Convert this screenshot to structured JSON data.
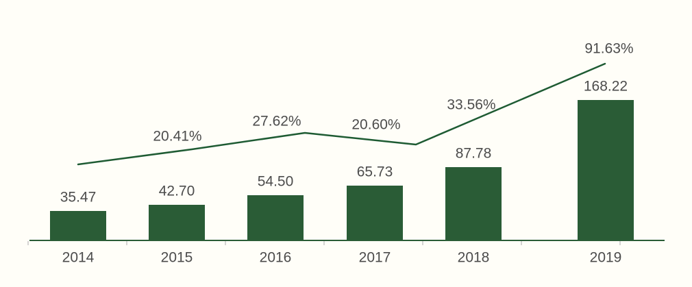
{
  "chart_data": {
    "type": "bar",
    "subtype": "bar-line-combo",
    "title": "",
    "xlabel": "",
    "ylabel": "",
    "legend_position": "none",
    "grid": false,
    "y_axis_labels_visible": false,
    "categories": [
      "2014",
      "2015",
      "2016",
      "2017",
      "2018",
      "2019"
    ],
    "series": [
      {
        "name": "value-bars",
        "type": "bar",
        "values": [
          35.47,
          42.7,
          54.5,
          65.73,
          87.78,
          168.22
        ],
        "labels": [
          "35.47",
          "42.70",
          "54.50",
          "65.73",
          "87.78",
          "168.22"
        ],
        "color": "#2a5c36"
      },
      {
        "name": "yoy-growth-line",
        "type": "line",
        "values": [
          null,
          20.41,
          27.62,
          20.6,
          33.56,
          91.63
        ],
        "labels": [
          "",
          "20.41%",
          "27.62%",
          "20.60%",
          "33.56%",
          "91.63%"
        ],
        "color": "#1e5b33"
      }
    ]
  },
  "colors": {
    "background": "#fffef8",
    "bar": "#2a5c36",
    "line": "#1e5b33",
    "axis": "#2a5c36",
    "tick": "#ababab",
    "text": "#4c4c4c"
  }
}
